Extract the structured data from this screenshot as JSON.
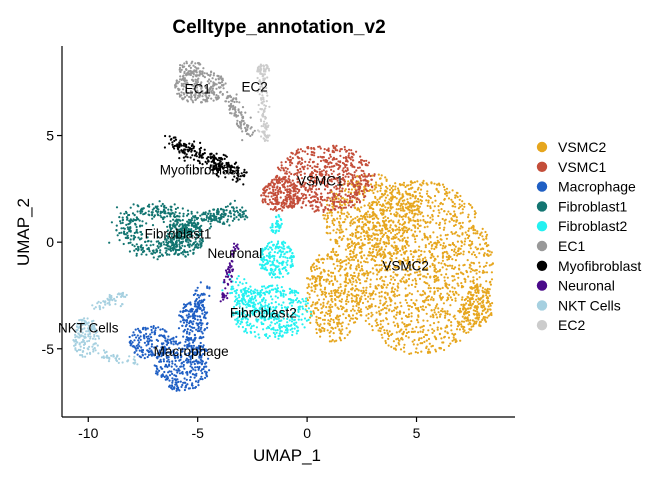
{
  "chart_data": {
    "type": "scatter",
    "title": "Celltype_annotation_v2",
    "xlabel": "UMAP_1",
    "ylabel": "UMAP_2",
    "xlim": [
      -11.2,
      9.5
    ],
    "ylim": [
      -8.2,
      9.2
    ],
    "x_ticks": [
      -10,
      -5,
      0,
      5
    ],
    "y_ticks": [
      -5,
      0,
      5
    ],
    "grid": false,
    "legend_position": "right",
    "series": [
      {
        "name": "VSMC2",
        "color": "#E6A61E",
        "label": "VSMC2",
        "label_pos": [
          4.5,
          -1.1
        ],
        "n": 2600,
        "regions": [
          {
            "type": "ellipse",
            "cx": 5.2,
            "cy": -1.2,
            "rx": 3.3,
            "ry": 4.1,
            "w": 3.0
          },
          {
            "type": "ellipse",
            "cx": 3.0,
            "cy": 1.2,
            "rx": 2.3,
            "ry": 2.0,
            "w": 1.0
          },
          {
            "type": "ellipse",
            "cx": 1.2,
            "cy": -2.5,
            "rx": 1.3,
            "ry": 2.2,
            "w": 0.8
          },
          {
            "type": "ellipse",
            "cx": 7.8,
            "cy": -3.0,
            "rx": 0.7,
            "ry": 1.0,
            "w": 0.3
          }
        ]
      },
      {
        "name": "VSMC1",
        "color": "#C44E3A",
        "label": "VSMC1",
        "label_pos": [
          0.6,
          2.9
        ],
        "n": 850,
        "regions": [
          {
            "type": "ellipse",
            "cx": 0.8,
            "cy": 3.0,
            "rx": 2.3,
            "ry": 1.6,
            "w": 1.0
          },
          {
            "type": "ellipse",
            "cx": -1.2,
            "cy": 2.2,
            "rx": 0.9,
            "ry": 0.8,
            "w": 0.3
          }
        ]
      },
      {
        "name": "Macrophage",
        "color": "#1F5FC4",
        "label": "Macrophage",
        "label_pos": [
          -5.3,
          -5.1
        ],
        "n": 700,
        "regions": [
          {
            "type": "ellipse",
            "cx": -5.7,
            "cy": -5.7,
            "rx": 1.3,
            "ry": 1.3,
            "w": 1.0
          },
          {
            "type": "ellipse",
            "cx": -7.2,
            "cy": -4.7,
            "rx": 1.0,
            "ry": 0.8,
            "w": 0.45
          },
          {
            "type": "ellipse",
            "cx": -5.2,
            "cy": -3.7,
            "rx": 0.7,
            "ry": 1.0,
            "w": 0.45
          },
          {
            "type": "line",
            "x1": -4.7,
            "y1": -2.0,
            "x2": -5.2,
            "y2": -3.6,
            "spread": 0.25,
            "w": 0.15
          }
        ]
      },
      {
        "name": "Fibroblast1",
        "color": "#137571",
        "label": "Fibroblast1",
        "label_pos": [
          -5.9,
          0.4
        ],
        "n": 750,
        "regions": [
          {
            "type": "ring",
            "cx": -6.9,
            "cy": 0.6,
            "rx": 1.3,
            "ry": 1.0,
            "thick": 0.25,
            "w": 0.8
          },
          {
            "type": "ellipse",
            "cx": -5.6,
            "cy": 0.2,
            "rx": 0.9,
            "ry": 0.9,
            "w": 0.5
          },
          {
            "type": "line",
            "x1": -5.3,
            "y1": 1.0,
            "x2": -3.0,
            "y2": 1.4,
            "spread": 0.3,
            "w": 0.35
          }
        ]
      },
      {
        "name": "Fibroblast2",
        "color": "#24F1F1",
        "label": "Fibroblast2",
        "label_pos": [
          -2.0,
          -3.3
        ],
        "n": 750,
        "regions": [
          {
            "type": "ellipse",
            "cx": -1.6,
            "cy": -3.3,
            "rx": 1.8,
            "ry": 1.3,
            "w": 1.0
          },
          {
            "type": "ellipse",
            "cx": -1.4,
            "cy": -0.8,
            "rx": 0.8,
            "ry": 0.9,
            "w": 0.5
          },
          {
            "type": "line",
            "x1": -3.5,
            "y1": -2.0,
            "x2": -1.6,
            "y2": -3.5,
            "spread": 0.35,
            "w": 0.35
          },
          {
            "type": "ellipse",
            "cx": -1.4,
            "cy": 0.8,
            "rx": 0.3,
            "ry": 0.5,
            "w": 0.1
          }
        ]
      },
      {
        "name": "EC1",
        "color": "#999999",
        "label": "EC1",
        "label_pos": [
          -5.0,
          7.2
        ],
        "n": 400,
        "regions": [
          {
            "type": "ellipse",
            "cx": -4.9,
            "cy": 7.3,
            "rx": 1.2,
            "ry": 0.8,
            "w": 1.0
          },
          {
            "type": "ellipse",
            "cx": -5.3,
            "cy": 8.1,
            "rx": 0.6,
            "ry": 0.4,
            "w": 0.25
          },
          {
            "type": "line",
            "x1": -3.7,
            "y1": 7.0,
            "x2": -2.6,
            "y2": 5.0,
            "spread": 0.25,
            "w": 0.45
          }
        ]
      },
      {
        "name": "Myofibroblast",
        "color": "#000000",
        "label": "Myofibroblast",
        "label_pos": [
          -4.9,
          3.4
        ],
        "n": 260,
        "regions": [
          {
            "type": "line",
            "x1": -6.2,
            "y1": 4.7,
            "x2": -2.9,
            "y2": 3.1,
            "spread": 0.3,
            "w": 1.0
          }
        ]
      },
      {
        "name": "Neuronal",
        "color": "#4A0A8A",
        "label": "Neuronal",
        "label_pos": [
          -3.3,
          -0.5
        ],
        "n": 60,
        "regions": [
          {
            "type": "line",
            "x1": -3.2,
            "y1": 0.0,
            "x2": -3.9,
            "y2": -2.8,
            "spread": 0.12,
            "w": 1.0
          }
        ]
      },
      {
        "name": "NKT Cells",
        "color": "#A6D0E0",
        "label": "NKT Cells",
        "label_pos": [
          -10.0,
          -4.0
        ],
        "n": 230,
        "regions": [
          {
            "type": "ellipse",
            "cx": -10.1,
            "cy": -4.5,
            "rx": 0.6,
            "ry": 1.0,
            "w": 1.0
          },
          {
            "type": "line",
            "x1": -9.7,
            "y1": -3.0,
            "x2": -8.3,
            "y2": -2.5,
            "spread": 0.2,
            "w": 0.4
          },
          {
            "type": "line",
            "x1": -9.5,
            "y1": -5.2,
            "x2": -7.8,
            "y2": -5.7,
            "spread": 0.18,
            "w": 0.3
          }
        ]
      },
      {
        "name": "EC2",
        "color": "#CCCCCC",
        "label": "EC2",
        "label_pos": [
          -2.4,
          7.3
        ],
        "n": 150,
        "regions": [
          {
            "type": "line",
            "x1": -2.1,
            "y1": 8.2,
            "x2": -1.9,
            "y2": 4.8,
            "spread": 0.15,
            "w": 1.0
          },
          {
            "type": "ellipse",
            "cx": -2.0,
            "cy": 8.1,
            "rx": 0.3,
            "ry": 0.25,
            "w": 0.3
          }
        ]
      }
    ]
  }
}
